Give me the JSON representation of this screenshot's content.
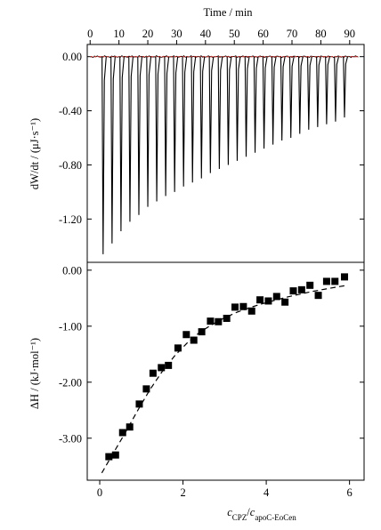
{
  "top_axis": {
    "label": "Time / min",
    "ticks": [
      "0",
      "10",
      "20",
      "30",
      "40",
      "50",
      "60",
      "70",
      "80",
      "90"
    ],
    "range": [
      -1,
      95
    ]
  },
  "upper_panel": {
    "ylabel": "dW/dt / (μJ·s⁻¹)",
    "yticks": [
      "0.00",
      "-0.40",
      "-0.80",
      "-1.20"
    ],
    "ylim": [
      -1.52,
      0.09
    ]
  },
  "lower_panel": {
    "ylabel": "ΔH / (kJ·mol⁻¹)",
    "yticks": [
      "0.00",
      "-1.00",
      "-2.00",
      "-3.00"
    ],
    "ylim": [
      -3.75,
      0.14
    ]
  },
  "bottom_axis": {
    "label": "c_CPZ/c_apoC-EoCen",
    "ticks": [
      "0",
      "2",
      "4",
      "6"
    ],
    "range": [
      -0.3,
      6.35
    ]
  },
  "chart_data": [
    {
      "type": "line",
      "panel": "upper",
      "xlabel": "Time / min",
      "ylabel": "dW/dt / (μJ·s⁻¹)",
      "description_values": "injection peak minima in μJ·s⁻¹ at injection times in min",
      "injection_times_min": [
        4.5,
        7.6,
        10.7,
        13.8,
        16.9,
        20.0,
        23.1,
        26.2,
        29.3,
        32.4,
        35.5,
        38.6,
        41.7,
        44.8,
        47.9,
        51.0,
        54.1,
        57.2,
        60.3,
        63.4,
        66.5,
        69.6,
        72.7,
        75.8,
        78.9,
        82.0,
        85.1,
        88.2
      ],
      "peak_minima": [
        -1.46,
        -1.38,
        -1.29,
        -1.22,
        -1.17,
        -1.11,
        -1.07,
        -1.03,
        -1.0,
        -0.96,
        -0.93,
        -0.9,
        -0.86,
        -0.83,
        -0.8,
        -0.77,
        -0.74,
        -0.71,
        -0.68,
        -0.65,
        -0.62,
        -0.6,
        -0.57,
        -0.54,
        -0.52,
        -0.5,
        -0.48,
        -0.45
      ],
      "baseline": 0.0,
      "xlim": [
        -1,
        95
      ],
      "ylim": [
        -1.52,
        0.09
      ]
    },
    {
      "type": "scatter",
      "panel": "lower",
      "xlabel": "c_CPZ/c_apoC-EoCen",
      "ylabel": "ΔH / (kJ·mol⁻¹)",
      "series": [
        {
          "values_x": [
            0.22,
            0.38,
            0.55,
            0.72,
            0.95,
            1.12,
            1.28,
            1.48,
            1.65,
            1.88,
            2.08,
            2.26,
            2.45,
            2.66,
            2.85,
            3.05,
            3.25,
            3.45,
            3.65,
            3.85,
            4.05,
            4.25,
            4.45,
            4.65,
            4.85,
            5.05,
            5.25,
            5.45,
            5.65,
            5.88
          ],
          "values_y": [
            -3.33,
            -3.3,
            -2.9,
            -2.8,
            -2.39,
            -2.12,
            -1.84,
            -1.74,
            -1.7,
            -1.39,
            -1.15,
            -1.25,
            -1.1,
            -0.91,
            -0.92,
            -0.86,
            -0.66,
            -0.65,
            -0.73,
            -0.53,
            -0.55,
            -0.47,
            -0.57,
            -0.37,
            -0.35,
            -0.27,
            -0.45,
            -0.2,
            -0.2,
            -0.12
          ]
        }
      ],
      "fit": {
        "x": [
          0.05,
          0.3,
          0.6,
          0.9,
          1.2,
          1.5,
          1.8,
          2.1,
          2.4,
          2.7,
          3.0,
          3.3,
          3.6,
          3.9,
          4.2,
          4.5,
          4.8,
          5.1,
          5.4,
          5.7,
          5.95
        ],
        "y": [
          -3.62,
          -3.3,
          -2.92,
          -2.52,
          -2.14,
          -1.81,
          -1.53,
          -1.3,
          -1.11,
          -0.97,
          -0.85,
          -0.75,
          -0.67,
          -0.6,
          -0.54,
          -0.48,
          -0.43,
          -0.38,
          -0.34,
          -0.3,
          -0.27
        ]
      },
      "xlim": [
        -0.3,
        6.35
      ],
      "ylim": [
        -3.75,
        0.14
      ]
    }
  ]
}
